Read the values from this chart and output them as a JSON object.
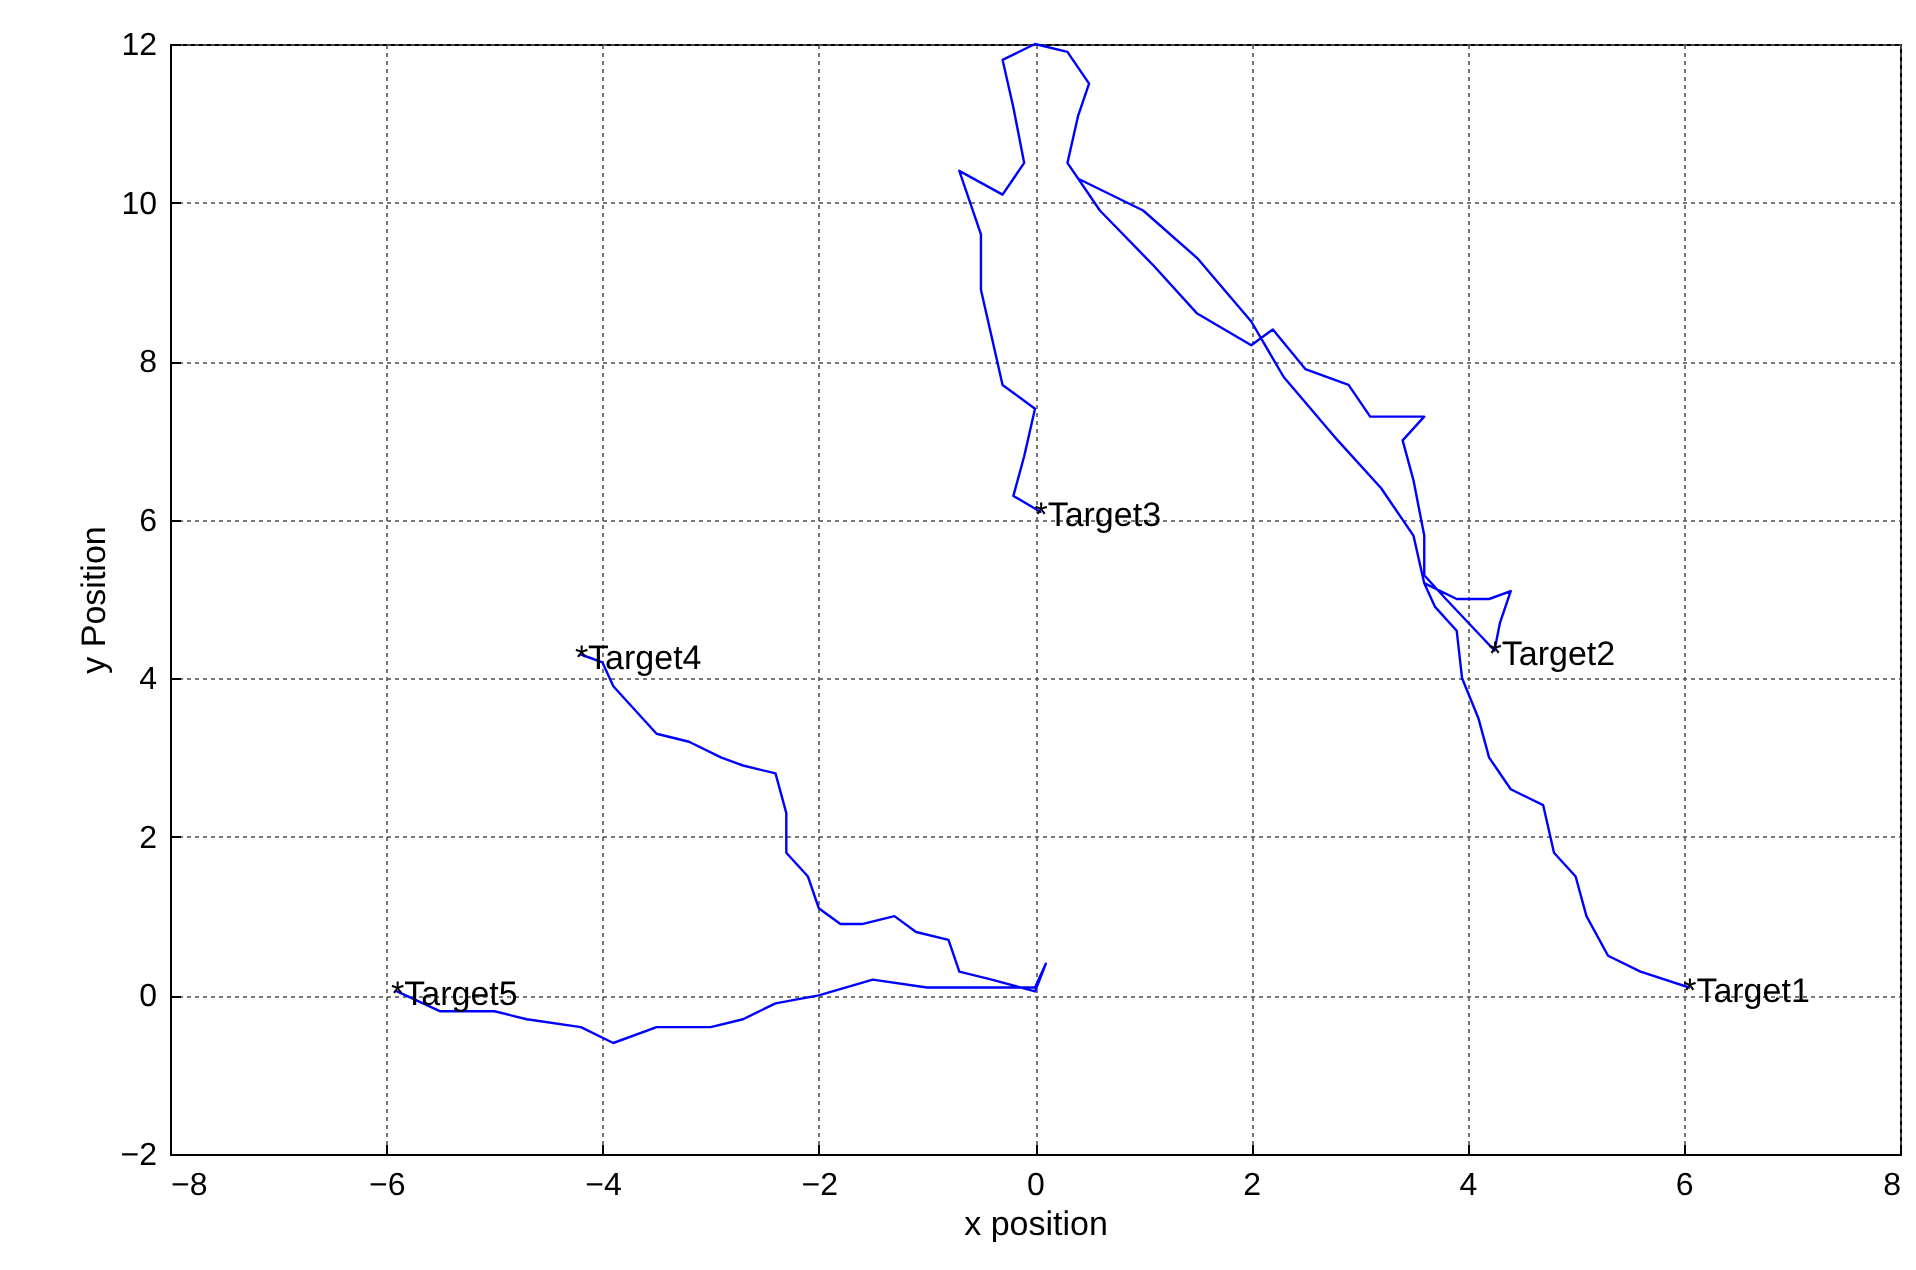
{
  "chart_data": {
    "type": "line",
    "xlabel": "x position",
    "ylabel": "y Position",
    "xlim": [
      -8,
      8
    ],
    "ylim": [
      -2,
      12
    ],
    "xticks": [
      -8,
      -6,
      -4,
      -2,
      0,
      2,
      4,
      6,
      8
    ],
    "yticks": [
      -2,
      0,
      2,
      4,
      6,
      8,
      10,
      12
    ],
    "grid": true,
    "marker": "none",
    "line_style": "solid",
    "series": [
      {
        "color": "#0000ff",
        "x": [
          6.05,
          5.6,
          5.3,
          5.1,
          5.0,
          4.8,
          4.7,
          4.4,
          4.2,
          4.1,
          3.95,
          3.9,
          3.7,
          3.6,
          3.9,
          4.2,
          4.4,
          4.3,
          4.25,
          3.8,
          3.6,
          3.6,
          3.5,
          3.4,
          3.6,
          3.1,
          2.9,
          2.5,
          2.2,
          2.0,
          1.5,
          1.1,
          0.6,
          0.3,
          0.4,
          0.5,
          0.3,
          0.0,
          -0.3,
          -0.2,
          -0.1,
          -0.3,
          -0.7,
          -0.5,
          -0.5,
          -0.4,
          -0.3,
          0.0,
          -0.1,
          -0.2,
          0.05,
          null,
          0.4,
          1.0,
          1.5,
          2.0,
          2.3,
          2.8,
          3.2,
          3.5,
          3.6,
          null,
          -4.2,
          -4.0,
          -3.9,
          -3.7,
          -3.5,
          -3.2,
          -2.9,
          -2.7,
          -2.4,
          -2.3,
          -2.3,
          -2.1,
          -2.0,
          -1.8,
          -1.6,
          -1.3,
          -1.1,
          -0.8,
          -0.7,
          -0.4,
          0.0,
          0.1,
          0.0,
          -0.5,
          -1.0,
          -1.5,
          -2.0,
          -2.4,
          -2.7,
          -3.0,
          -3.5,
          -3.9,
          -4.2,
          -4.7,
          -5.0,
          -5.5,
          -5.9
        ],
        "values": [
          0.1,
          0.3,
          0.5,
          1.0,
          1.5,
          1.8,
          2.4,
          2.6,
          3.0,
          3.5,
          4.0,
          4.6,
          4.9,
          5.2,
          5.0,
          5.0,
          5.1,
          4.7,
          4.35,
          5.0,
          5.3,
          5.8,
          6.5,
          7.0,
          7.3,
          7.3,
          7.7,
          7.9,
          8.4,
          8.2,
          8.6,
          9.2,
          9.9,
          10.5,
          11.1,
          11.5,
          11.9,
          12.0,
          11.8,
          11.2,
          10.5,
          10.1,
          10.4,
          9.6,
          8.9,
          8.3,
          7.7,
          7.4,
          6.8,
          6.3,
          6.1,
          null,
          10.3,
          9.9,
          9.3,
          8.5,
          7.8,
          7.0,
          6.4,
          5.8,
          5.2,
          null,
          4.3,
          4.2,
          3.9,
          3.6,
          3.3,
          3.2,
          3.0,
          2.9,
          2.8,
          2.3,
          1.8,
          1.5,
          1.1,
          0.9,
          0.9,
          1.0,
          0.8,
          0.7,
          0.3,
          0.2,
          0.05,
          0.4,
          0.1,
          0.1,
          0.1,
          0.2,
          0.0,
          -0.1,
          -0.3,
          -0.4,
          -0.4,
          -0.6,
          -0.4,
          -0.3,
          -0.2,
          -0.2,
          0.05
        ]
      }
    ],
    "annotations": [
      {
        "text": "*Target1",
        "x": 6.05,
        "y": 0.1
      },
      {
        "text": "*Target2",
        "x": 4.25,
        "y": 4.35
      },
      {
        "text": "*Target3",
        "x": 0.05,
        "y": 6.1
      },
      {
        "text": "*Target4",
        "x": -4.2,
        "y": 4.3
      },
      {
        "text": "*Target5",
        "x": -5.9,
        "y": 0.05
      }
    ]
  }
}
